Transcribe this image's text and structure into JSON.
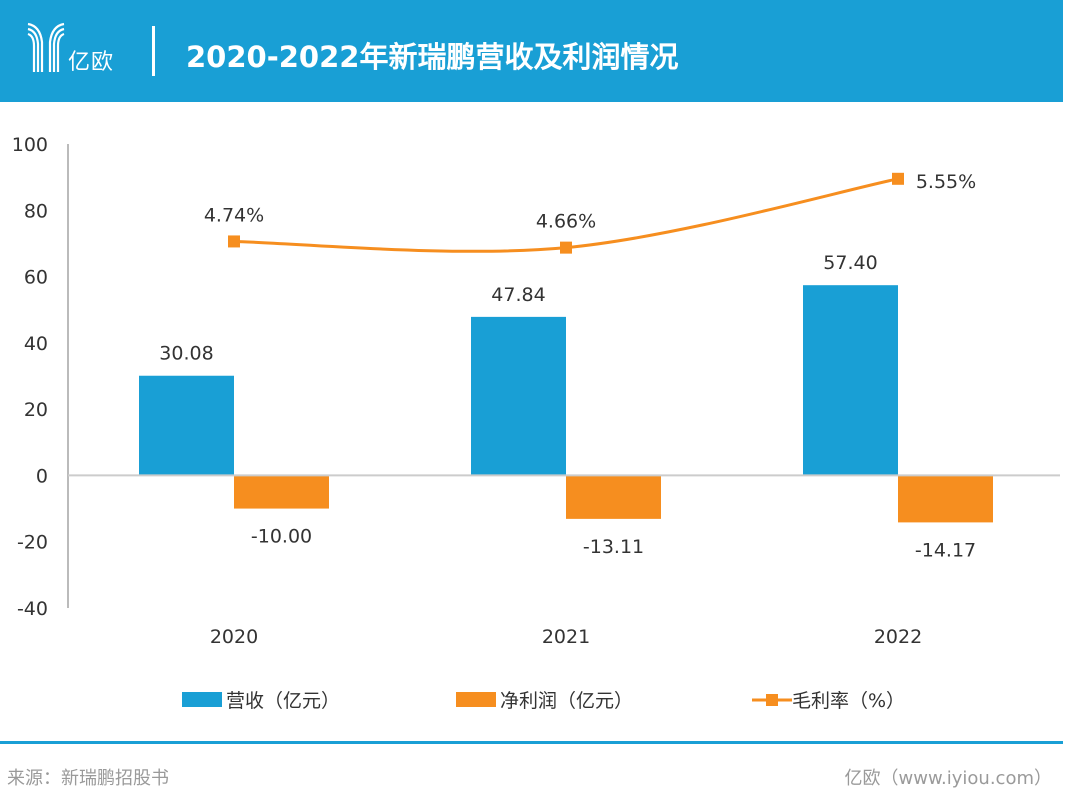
{
  "header": {
    "logo_text": "亿欧",
    "title": "2020-2022年新瑞鹏营收及利润情况"
  },
  "colors": {
    "revenue": "#199fd5",
    "profit": "#f68e1f",
    "margin": "#f68e1f",
    "header": "#199fd5"
  },
  "chart_data": {
    "type": "bar",
    "categories": [
      "2020",
      "2021",
      "2022"
    ],
    "ylim": [
      -40,
      100
    ],
    "yticks": [
      "100",
      "80",
      "60",
      "40",
      "20",
      "0",
      "-20",
      "-40"
    ],
    "ytick_values": [
      100,
      80,
      60,
      40,
      20,
      0,
      -20,
      -40
    ],
    "series": [
      {
        "name": "营收（亿元）",
        "type": "bar",
        "values": [
          30.08,
          47.84,
          57.4
        ],
        "labels": [
          "30.08",
          "47.84",
          "57.40"
        ]
      },
      {
        "name": "净利润（亿元）",
        "type": "bar",
        "values": [
          -10.0,
          -13.11,
          -14.17
        ],
        "labels": [
          "-10.00",
          "-13.11",
          "-14.17"
        ]
      },
      {
        "name": "毛利率（%）",
        "type": "line",
        "axis": "secondary",
        "secondary_ylim": [
          0,
          6
        ],
        "values": [
          4.74,
          4.66,
          5.55
        ],
        "labels": [
          "4.74%",
          "4.66%",
          "5.55%"
        ]
      }
    ]
  },
  "footer": {
    "source": "来源：新瑞鹏招股书",
    "site": "亿欧（www.iyiou.com）"
  }
}
